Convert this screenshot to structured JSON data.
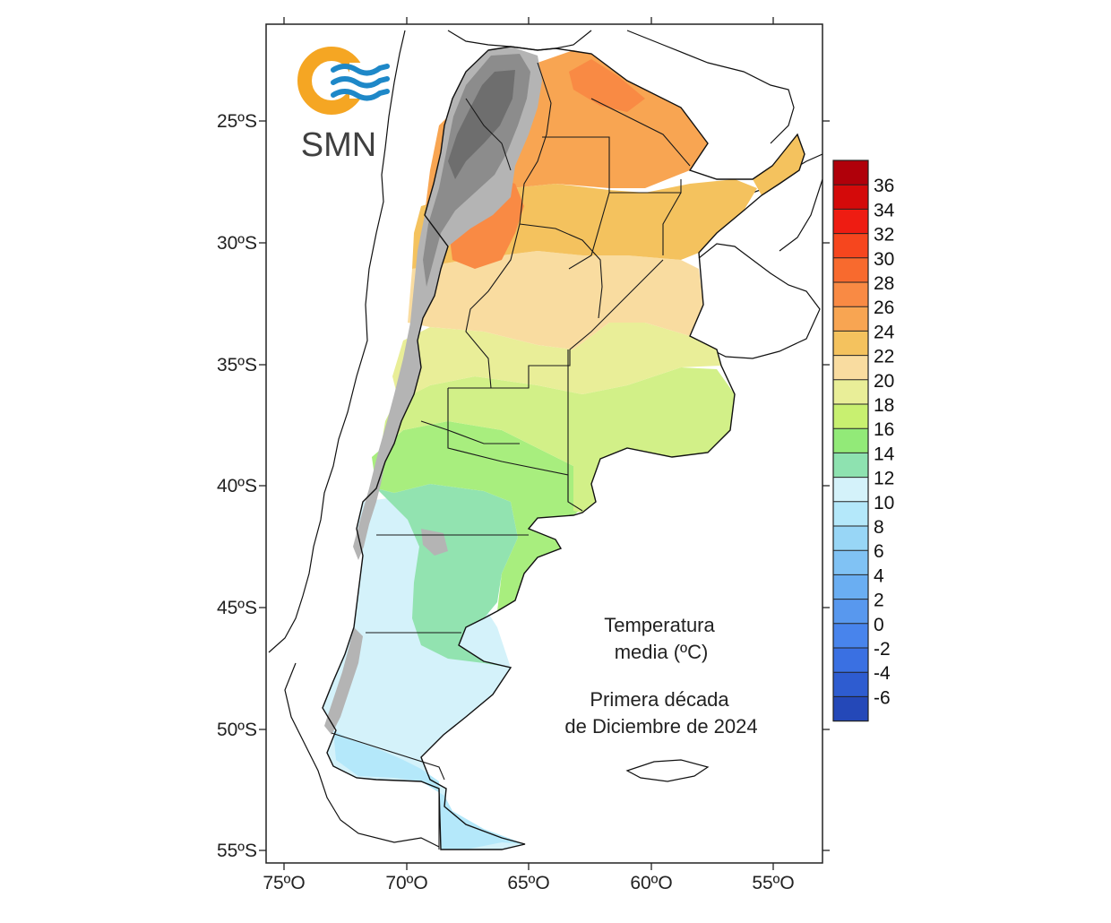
{
  "logo": {
    "text": "SMN",
    "ring_color": "#F5A623",
    "wave_color": "#1E88C8"
  },
  "map": {
    "title_line1": "Temperatura",
    "title_line2": "media (ºC)",
    "period_line1": "Primera década",
    "period_line2": "de Diciembre de 2024",
    "lat_labels": [
      "25ºS",
      "30ºS",
      "35ºS",
      "40ºS",
      "45ºS",
      "50ºS",
      "55ºS"
    ],
    "lon_labels": [
      "75ºO",
      "70ºO",
      "65ºO",
      "60ºO",
      "55ºO"
    ]
  },
  "colorbar": {
    "labels": [
      "36",
      "34",
      "32",
      "30",
      "28",
      "26",
      "24",
      "22",
      "20",
      "18",
      "16",
      "14",
      "12",
      "10",
      "8",
      "6",
      "4",
      "2",
      "0",
      "-2",
      "-4",
      "-6"
    ],
    "colors_top_to_bottom": [
      "#B0000A",
      "#D40A0A",
      "#EE1C12",
      "#F6461E",
      "#F86A2E",
      "#F98A44",
      "#F8A552",
      "#F4C25E",
      "#F9DCA0",
      "#E9EE98",
      "#C8F070",
      "#92EA78",
      "#8EE2B0",
      "#D4F2FA",
      "#B4E8FA",
      "#98D6F6",
      "#80C2F4",
      "#6AAEF2",
      "#5898EE",
      "#4884EC",
      "#3A70E2",
      "#2E5CD0",
      "#2448B8"
    ]
  }
}
